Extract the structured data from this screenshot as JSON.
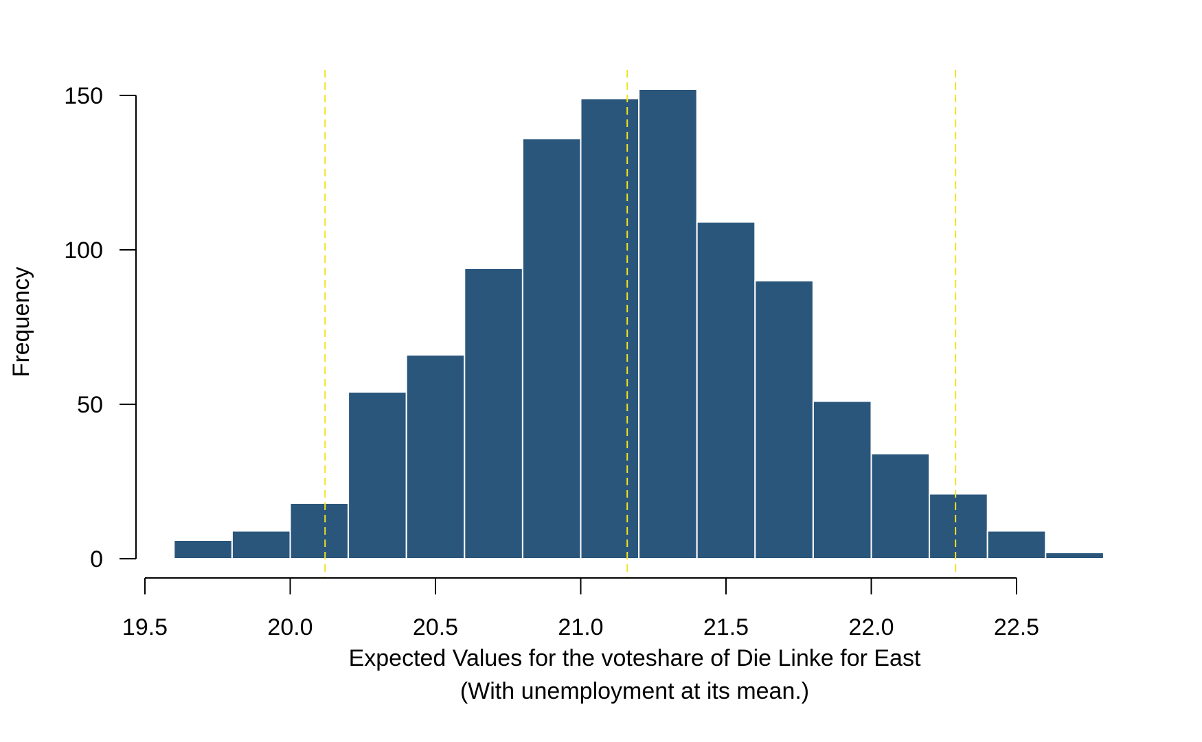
{
  "chart_data": {
    "type": "bar",
    "subtype": "histogram",
    "title": "",
    "xlabel": "Expected Values for the voteshare of Die Linke for East",
    "xlabel_line2": "(With unemployment at its mean.)",
    "ylabel": "Frequency",
    "xlim": [
      19.5,
      22.8
    ],
    "ylim": [
      0,
      150
    ],
    "x_ticks": [
      19.5,
      20.0,
      20.5,
      21.0,
      21.5,
      22.0,
      22.5
    ],
    "x_tick_labels": [
      "19.5",
      "20.0",
      "20.5",
      "21.0",
      "21.5",
      "22.0",
      "22.5"
    ],
    "y_ticks": [
      0,
      50,
      100,
      150
    ],
    "y_tick_labels": [
      "0",
      "50",
      "100",
      "150"
    ],
    "bins": [
      {
        "start": 19.6,
        "end": 19.8,
        "count": 6
      },
      {
        "start": 19.8,
        "end": 20.0,
        "count": 9
      },
      {
        "start": 20.0,
        "end": 20.2,
        "count": 18
      },
      {
        "start": 20.2,
        "end": 20.4,
        "count": 54
      },
      {
        "start": 20.4,
        "end": 20.6,
        "count": 66
      },
      {
        "start": 20.6,
        "end": 20.8,
        "count": 94
      },
      {
        "start": 20.8,
        "end": 21.0,
        "count": 136
      },
      {
        "start": 21.0,
        "end": 21.2,
        "count": 149
      },
      {
        "start": 21.2,
        "end": 21.4,
        "count": 152
      },
      {
        "start": 21.4,
        "end": 21.6,
        "count": 109
      },
      {
        "start": 21.6,
        "end": 21.8,
        "count": 90
      },
      {
        "start": 21.8,
        "end": 22.0,
        "count": 51
      },
      {
        "start": 22.0,
        "end": 22.2,
        "count": 34
      },
      {
        "start": 22.2,
        "end": 22.4,
        "count": 21
      },
      {
        "start": 22.4,
        "end": 22.6,
        "count": 9
      },
      {
        "start": 22.6,
        "end": 22.8,
        "count": 2
      }
    ],
    "reference_lines": [
      20.12,
      21.16,
      22.29
    ],
    "colors": {
      "bar": "#2a567c",
      "bar_edge": "#ffffff",
      "reference_line": "#f2e31f",
      "axis": "#000000"
    },
    "grid": false,
    "legend": "none"
  }
}
